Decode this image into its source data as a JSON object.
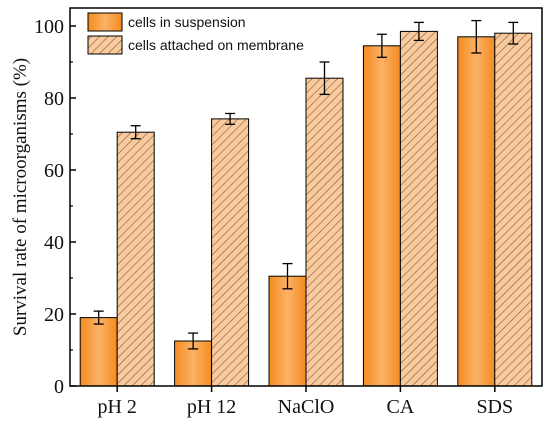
{
  "chart_data": {
    "type": "bar",
    "categories": [
      "pH 2",
      "pH 12",
      "NaClO",
      "CA",
      "SDS"
    ],
    "series": [
      {
        "name": "cells in suspension",
        "values": [
          19,
          12.5,
          30.5,
          94.5,
          97
        ],
        "errors": [
          1.8,
          2.2,
          3.5,
          3.2,
          4.5
        ],
        "color": "#f7a35c",
        "pattern": "solid"
      },
      {
        "name": "cells attached on membrane",
        "values": [
          70.5,
          74.2,
          85.5,
          98.5,
          98
        ],
        "errors": [
          1.8,
          1.5,
          4.5,
          2.5,
          3.0
        ],
        "color": "#f7c89a",
        "pattern": "hatch"
      }
    ],
    "title": "",
    "xlabel": "",
    "ylabel": "Survival rate of  microorganisms  (%)",
    "ylim": [
      0,
      105
    ],
    "yticks": [
      0,
      20,
      40,
      60,
      80,
      100
    ],
    "grid": false,
    "legend": "top-left"
  }
}
